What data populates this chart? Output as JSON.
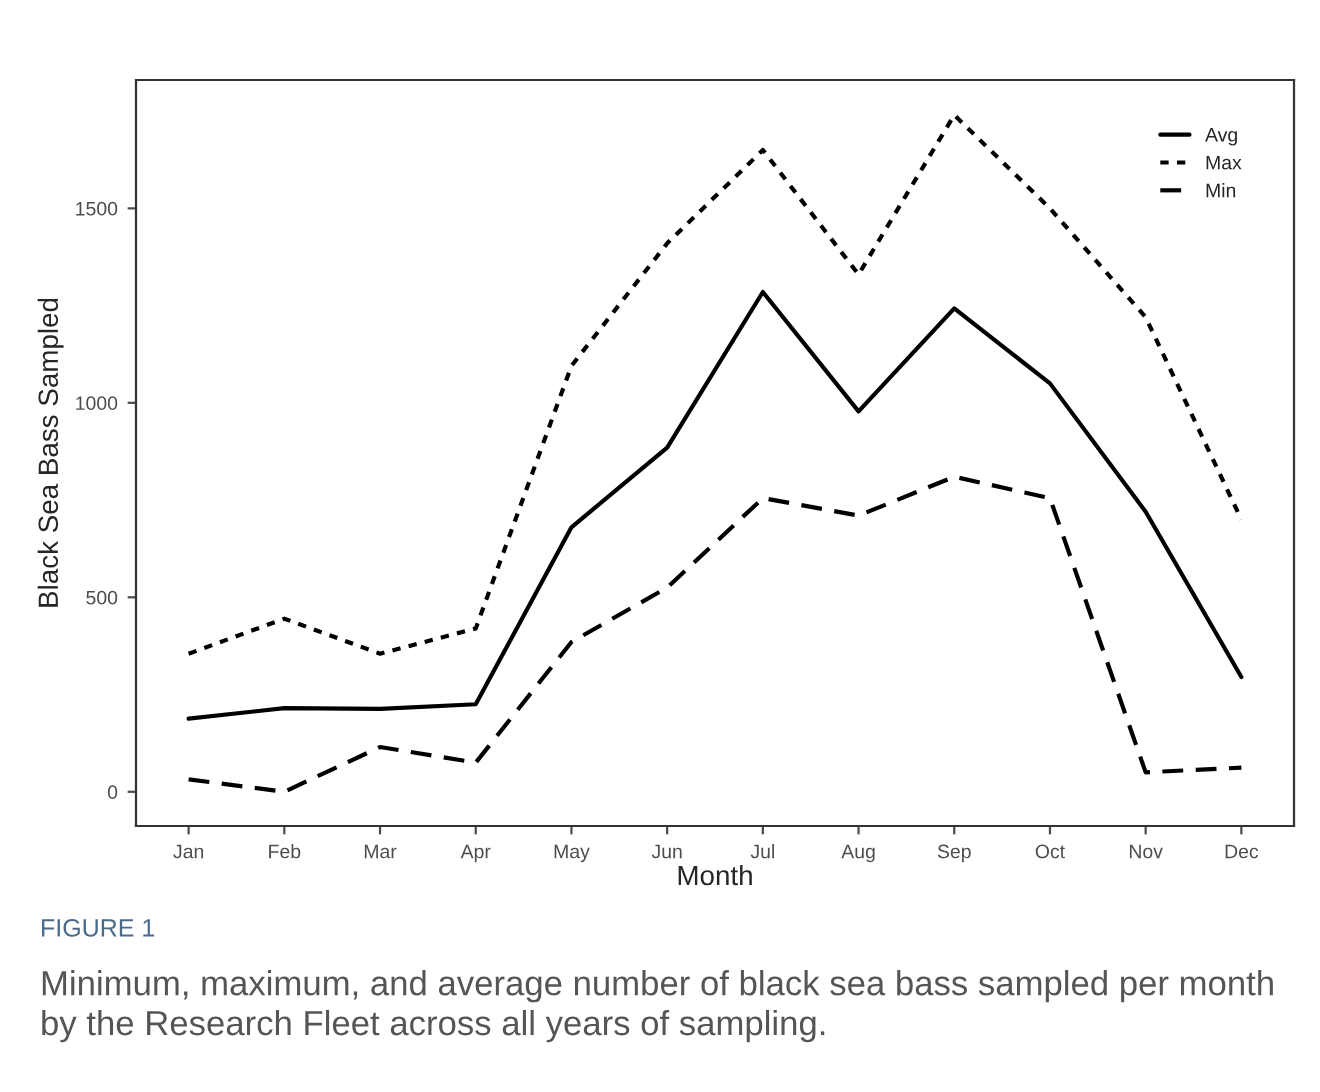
{
  "chart_data": {
    "type": "line",
    "xlabel": "Month",
    "ylabel": "Black Sea Bass Sampled",
    "categories": [
      "Jan",
      "Feb",
      "Mar",
      "Apr",
      "May",
      "Jun",
      "Jul",
      "Aug",
      "Sep",
      "Oct",
      "Nov",
      "Dec"
    ],
    "series": [
      {
        "name": "Avg",
        "color": "#000000",
        "line_style": "solid",
        "values": [
          188,
          215,
          213,
          225,
          680,
          885,
          1285,
          978,
          1243,
          1050,
          720,
          295
        ]
      },
      {
        "name": "Max",
        "color": "#000000",
        "line_style": "dotted",
        "values": [
          355,
          445,
          355,
          420,
          1095,
          1410,
          1650,
          1330,
          1740,
          1500,
          1220,
          700
        ]
      },
      {
        "name": "Min",
        "color": "#000000",
        "line_style": "dashed",
        "values": [
          32,
          0,
          115,
          75,
          385,
          525,
          755,
          710,
          810,
          755,
          50,
          62
        ]
      }
    ],
    "ylim": [
      -88,
      1830
    ],
    "yticks": [
      0,
      500,
      1000,
      1500
    ],
    "grid": false,
    "legend": "top right",
    "annotations": [
      "FIGURE 1",
      "Minimum, maximum, and average number of black sea bass sampled per month by the Research Fleet across all years of sampling."
    ]
  }
}
